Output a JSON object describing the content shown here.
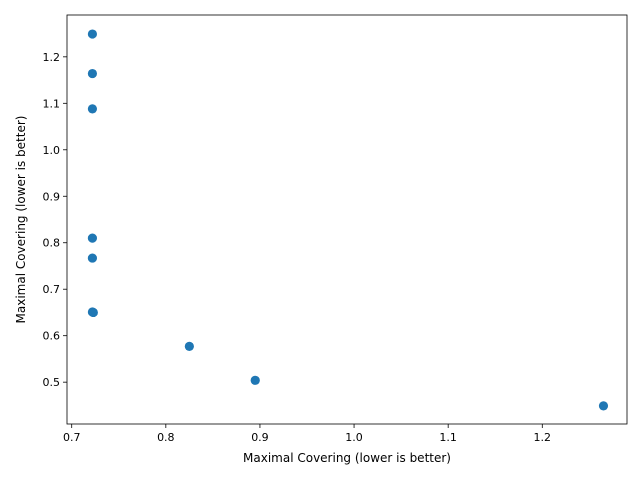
{
  "chart_data": {
    "type": "scatter",
    "title": "",
    "xlabel": "Maximal Covering (lower is better)",
    "ylabel": "Maximal Covering (lower is better)",
    "xlim": [
      0.695,
      1.29
    ],
    "ylim": [
      0.41,
      1.29
    ],
    "xticks": [
      0.7,
      0.8,
      0.9,
      1.0,
      1.1,
      1.2
    ],
    "xtick_labels": [
      "0.7",
      "0.8",
      "0.9",
      "1.0",
      "1.1",
      "1.2"
    ],
    "yticks": [
      0.5,
      0.6,
      0.7,
      0.8,
      0.9,
      1.0,
      1.1,
      1.2
    ],
    "ytick_labels": [
      "0.5",
      "0.6",
      "0.7",
      "0.8",
      "0.9",
      "1.0",
      "1.1",
      "1.2"
    ],
    "grid": false,
    "marker_color": "#1f77b4",
    "points": [
      {
        "x": 0.722,
        "y": 1.249
      },
      {
        "x": 0.722,
        "y": 1.164
      },
      {
        "x": 0.722,
        "y": 1.088
      },
      {
        "x": 0.722,
        "y": 0.81
      },
      {
        "x": 0.722,
        "y": 0.767
      },
      {
        "x": 0.722,
        "y": 0.651
      },
      {
        "x": 0.723,
        "y": 0.65
      },
      {
        "x": 0.825,
        "y": 0.577
      },
      {
        "x": 0.895,
        "y": 0.504
      },
      {
        "x": 1.265,
        "y": 0.449
      }
    ]
  }
}
